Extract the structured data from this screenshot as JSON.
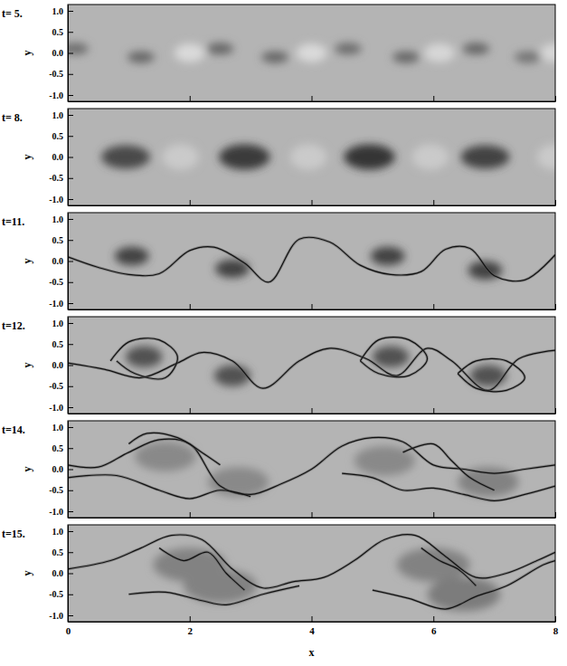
{
  "chart_data": [
    {
      "type": "field",
      "title": "t= 5.",
      "ylabel": "y",
      "xlim": [
        0,
        8
      ],
      "ylim": [
        -1.15,
        1.15
      ],
      "xticks": [
        0,
        2,
        4,
        6,
        8
      ],
      "yticks": [
        {
          "value": -1,
          "label": "-1.0"
        },
        -0.5,
        {
          "value": 0,
          "label": "0.0"
        },
        0.5,
        {
          "value": 1,
          "label": "1.0"
        }
      ],
      "tick_labels": "y",
      "vlim": [
        -1,
        1
      ],
      "x": [
        0.12,
        1.2,
        2.0,
        2.5,
        3.4,
        4.0,
        4.6,
        5.55,
        6.1,
        6.7,
        7.55,
        8.0
      ],
      "y": [
        0.1,
        -0.1,
        0,
        0.1,
        -0.1,
        0,
        0.1,
        -0.1,
        0,
        0.1,
        -0.1,
        0
      ],
      "values": [
        0.5,
        0.55,
        -0.6,
        0.55,
        0.55,
        -0.6,
        0.5,
        0.55,
        -0.55,
        0.55,
        0.45,
        -0.55
      ],
      "rx": [
        0.22,
        0.22,
        0.25,
        0.22,
        0.22,
        0.25,
        0.22,
        0.22,
        0.25,
        0.22,
        0.22,
        0.25
      ],
      "ry": [
        0.14,
        0.14,
        0.22,
        0.14,
        0.14,
        0.22,
        0.14,
        0.14,
        0.22,
        0.14,
        0.14,
        0.22
      ],
      "curves": []
    },
    {
      "type": "field",
      "title": "t= 8.",
      "ylabel": "y",
      "xlim": [
        0,
        8
      ],
      "ylim": [
        -1.15,
        1.15
      ],
      "xticks": [
        0,
        2,
        4,
        6,
        8
      ],
      "yticks": [
        {
          "value": -1,
          "label": "-1.0"
        },
        -0.5,
        {
          "value": 0,
          "label": "0.0"
        },
        0.5,
        {
          "value": 1,
          "label": "1.0"
        }
      ],
      "tick_labels": "y",
      "vlim": [
        -1,
        1
      ],
      "x": [
        0.95,
        2.9,
        4.95,
        6.85,
        1.85,
        3.95,
        5.95,
        8.0
      ],
      "y": [
        0.0,
        0.0,
        0.0,
        0.0,
        0.0,
        0.0,
        0.0,
        0.0
      ],
      "values": [
        0.75,
        0.85,
        0.9,
        0.8,
        -0.35,
        -0.35,
        -0.35,
        -0.35
      ],
      "rx": [
        0.4,
        0.42,
        0.42,
        0.4,
        0.3,
        0.3,
        0.3,
        0.3
      ],
      "ry": [
        0.28,
        0.3,
        0.3,
        0.28,
        0.3,
        0.3,
        0.3,
        0.3
      ],
      "curves": []
    },
    {
      "type": "field",
      "title": "t=11.",
      "ylabel": "y",
      "xlim": [
        0,
        8
      ],
      "ylim": [
        -1.15,
        1.15
      ],
      "xticks": [
        0,
        2,
        4,
        6,
        8
      ],
      "yticks": [
        {
          "value": -1,
          "label": "-1.0"
        },
        -0.5,
        {
          "value": 0,
          "label": "0.0"
        },
        0.5,
        {
          "value": 1,
          "label": "1.0"
        }
      ],
      "tick_labels": "y",
      "vlim": [
        -1,
        1
      ],
      "x": [
        1.05,
        2.7,
        5.25,
        6.85
      ],
      "y": [
        0.12,
        -0.18,
        0.12,
        -0.22
      ],
      "values": [
        0.8,
        0.8,
        0.8,
        0.8
      ],
      "rx": [
        0.28,
        0.28,
        0.28,
        0.28
      ],
      "ry": [
        0.22,
        0.22,
        0.22,
        0.22
      ],
      "curves": [
        {
          "x": [
            0,
            0.5,
            1.0,
            1.5,
            2.0,
            2.4,
            2.9,
            3.3,
            3.8,
            4.3,
            4.8,
            5.3,
            5.8,
            6.2,
            6.6,
            7.0,
            7.5,
            8.0
          ],
          "y": [
            0.1,
            -0.15,
            -0.32,
            -0.3,
            0.25,
            0.33,
            -0.05,
            -0.5,
            0.52,
            0.45,
            -0.1,
            -0.32,
            -0.25,
            0.28,
            0.3,
            -0.35,
            -0.45,
            0.15
          ]
        }
      ]
    },
    {
      "type": "field",
      "title": "t=12.",
      "ylabel": "y",
      "xlim": [
        0,
        8
      ],
      "ylim": [
        -1.15,
        1.15
      ],
      "xticks": [
        0,
        2,
        4,
        6,
        8
      ],
      "yticks": [
        {
          "value": -1,
          "label": "-1.0"
        },
        -0.5,
        {
          "value": 0,
          "label": "0.0"
        },
        0.5,
        {
          "value": 1,
          "label": "1.0"
        }
      ],
      "tick_labels": "y",
      "vlim": [
        -1,
        1
      ],
      "x": [
        1.25,
        2.7,
        5.3,
        6.9
      ],
      "y": [
        0.2,
        -0.25,
        0.2,
        -0.25
      ],
      "values": [
        0.7,
        0.7,
        0.7,
        0.7
      ],
      "rx": [
        0.3,
        0.3,
        0.3,
        0.3
      ],
      "ry": [
        0.25,
        0.25,
        0.25,
        0.25
      ],
      "curves": [
        {
          "x": [
            0,
            0.6,
            1.2,
            1.8,
            2.2,
            2.7,
            3.2,
            3.8,
            4.3,
            4.9,
            5.4,
            5.9,
            6.3,
            6.9,
            7.4,
            8.0
          ],
          "y": [
            0.05,
            -0.1,
            -0.3,
            0.05,
            0.3,
            0.1,
            -0.55,
            0.1,
            0.4,
            0.15,
            -0.25,
            0.4,
            0.1,
            -0.6,
            0.15,
            0.35
          ]
        },
        {
          "x": [
            0.7,
            1.0,
            1.5,
            1.8,
            1.6,
            1.1,
            0.8
          ],
          "y": [
            0.1,
            0.55,
            0.6,
            0.2,
            -0.3,
            -0.2,
            0.1
          ]
        },
        {
          "x": [
            4.8,
            5.1,
            5.6,
            5.9,
            5.6,
            5.1,
            4.8
          ],
          "y": [
            0.1,
            0.6,
            0.6,
            0.15,
            -0.25,
            -0.2,
            0.1
          ]
        },
        {
          "x": [
            6.4,
            6.7,
            7.2,
            7.5,
            7.2,
            6.7,
            6.4
          ],
          "y": [
            -0.2,
            0.1,
            0.1,
            -0.3,
            -0.6,
            -0.55,
            -0.2
          ]
        }
      ]
    },
    {
      "type": "field",
      "title": "t=14.",
      "ylabel": "y",
      "xlim": [
        0,
        8
      ],
      "ylim": [
        -1.15,
        1.15
      ],
      "xticks": [
        0,
        2,
        4,
        6,
        8
      ],
      "yticks": [
        {
          "value": -1,
          "label": "-1.0"
        },
        -0.5,
        {
          "value": 0,
          "label": "0.0"
        },
        0.5,
        {
          "value": 1,
          "label": "1.0"
        }
      ],
      "tick_labels": "y",
      "vlim": [
        -1,
        1
      ],
      "x": [
        1.6,
        2.8,
        5.2,
        6.9
      ],
      "y": [
        0.3,
        -0.3,
        0.2,
        -0.3
      ],
      "values": [
        0.3,
        0.3,
        0.3,
        0.35
      ],
      "rx": [
        0.5,
        0.5,
        0.5,
        0.5
      ],
      "ry": [
        0.35,
        0.35,
        0.35,
        0.35
      ],
      "curves": [
        {
          "x": [
            0,
            0.5,
            1.0,
            1.5,
            2.0,
            2.5,
            3.0,
            3.5,
            4.0,
            4.5,
            5.0,
            5.5,
            6.0,
            6.5,
            7.0,
            7.5,
            8.0
          ],
          "y": [
            0.1,
            0.05,
            0.4,
            0.7,
            0.6,
            -0.4,
            -0.6,
            -0.35,
            0.0,
            0.55,
            0.75,
            0.65,
            0.1,
            0.0,
            -0.1,
            0.0,
            0.1
          ]
        },
        {
          "x": [
            0,
            0.8,
            1.5,
            2.0,
            2.5,
            3.0
          ],
          "y": [
            -0.2,
            -0.15,
            -0.5,
            -0.7,
            -0.5,
            -0.65
          ]
        },
        {
          "x": [
            4.5,
            5.0,
            5.5,
            6.0,
            6.5,
            7.0,
            7.5,
            8.0
          ],
          "y": [
            -0.1,
            -0.2,
            -0.5,
            -0.45,
            -0.6,
            -0.75,
            -0.6,
            -0.4
          ]
        },
        {
          "x": [
            1.0,
            1.3,
            1.8,
            2.2,
            2.5
          ],
          "y": [
            0.6,
            0.85,
            0.75,
            0.4,
            0.1
          ]
        },
        {
          "x": [
            5.5,
            6.0,
            6.3,
            6.6,
            7.0
          ],
          "y": [
            0.4,
            0.6,
            0.2,
            -0.2,
            -0.5
          ]
        }
      ]
    },
    {
      "type": "field",
      "title": "t=15.",
      "ylabel": "y",
      "xlabel": "x",
      "xlim": [
        0,
        8
      ],
      "ylim": [
        -1.15,
        1.15
      ],
      "xticks": [
        0,
        2,
        4,
        6,
        8
      ],
      "yticks": [
        {
          "value": -1,
          "label": "-1.0"
        },
        -0.5,
        {
          "value": 0,
          "label": "0.0"
        },
        0.5,
        {
          "value": 1,
          "label": "1.0"
        }
      ],
      "tick_labels": true,
      "vlim": [
        -1,
        1
      ],
      "x": [
        2.0,
        2.5,
        6.0,
        6.5
      ],
      "y": [
        0.2,
        -0.3,
        0.2,
        -0.5
      ],
      "values": [
        0.35,
        0.35,
        0.35,
        0.4
      ],
      "rx": [
        0.6,
        0.6,
        0.6,
        0.6
      ],
      "ry": [
        0.4,
        0.4,
        0.4,
        0.4
      ],
      "curves": [
        {
          "x": [
            0,
            0.7,
            1.2,
            1.7,
            2.2,
            2.7,
            3.2,
            3.7,
            4.2,
            4.7,
            5.2,
            5.7,
            6.2,
            6.7,
            7.2,
            7.7,
            8.0
          ],
          "y": [
            0.1,
            0.3,
            0.6,
            0.9,
            0.8,
            0.1,
            -0.35,
            -0.2,
            -0.1,
            0.3,
            0.8,
            0.9,
            0.4,
            -0.1,
            0.0,
            0.3,
            0.5
          ]
        },
        {
          "x": [
            1.0,
            1.6,
            2.2,
            2.6,
            3.2,
            3.8
          ],
          "y": [
            -0.5,
            -0.45,
            -0.65,
            -0.75,
            -0.5,
            -0.3
          ]
        },
        {
          "x": [
            5.0,
            5.6,
            6.2,
            6.7,
            7.2,
            7.8,
            8.0
          ],
          "y": [
            -0.4,
            -0.6,
            -0.85,
            -0.55,
            -0.3,
            0.2,
            0.3
          ]
        },
        {
          "x": [
            1.5,
            1.9,
            2.3,
            2.6,
            2.9
          ],
          "y": [
            0.6,
            0.3,
            0.5,
            0.0,
            -0.4
          ]
        },
        {
          "x": [
            5.8,
            6.1,
            6.4,
            6.7
          ],
          "y": [
            0.6,
            0.3,
            0.1,
            -0.3
          ]
        }
      ]
    }
  ]
}
